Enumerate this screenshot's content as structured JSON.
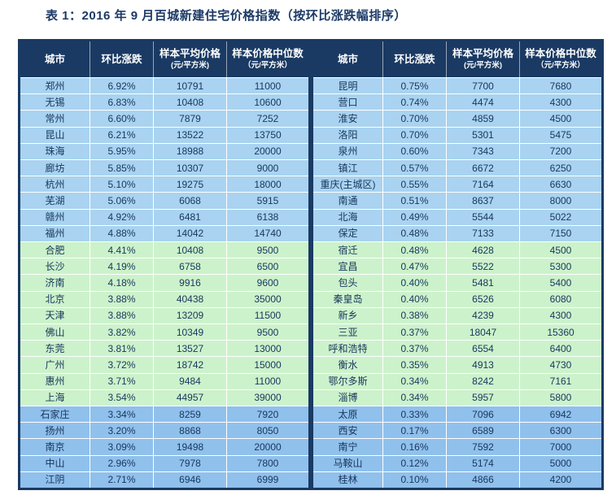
{
  "title": "表 1：2016 年 9 月百城新建住宅价格指数（按环比涨跌幅排序）",
  "header": {
    "city": "城市",
    "change": "环比涨跌",
    "avg": "样本平均价格",
    "avg_unit": "(元/平方米)",
    "median": "样本价格中位数",
    "median_unit": "（元/平方米）"
  },
  "colors": {
    "header_bg": "#1a3a63",
    "border": "#1a3a63",
    "row_blue": "#a9d3f0",
    "row_green": "#ccf2cb",
    "row_mblue": "#90c0ec",
    "cell_text": "#17365d",
    "header_text": "#ffffff",
    "title_text": "#1c3a66",
    "grid_line": "#ffffff"
  },
  "chart_data": {
    "type": "table",
    "title": "表 1：2016 年 9 月百城新建住宅价格指数（按环比涨跌幅排序）",
    "columns": [
      "城市",
      "环比涨跌",
      "样本平均价格(元/平方米)",
      "样本价格中位数（元/平方米）"
    ],
    "row_group_legend": {
      "blue": "light-blue band (rows 1-10)",
      "green": "pale-green band (rows 11-20)",
      "mblue": "medium-blue band (rows 21-25)"
    },
    "left_rows": [
      {
        "city": "郑州",
        "change": "6.92%",
        "avg": "10791",
        "median": "11000",
        "group": "blue"
      },
      {
        "city": "无锡",
        "change": "6.83%",
        "avg": "10408",
        "median": "10600",
        "group": "blue"
      },
      {
        "city": "常州",
        "change": "6.60%",
        "avg": "7879",
        "median": "7252",
        "group": "blue"
      },
      {
        "city": "昆山",
        "change": "6.21%",
        "avg": "13522",
        "median": "13750",
        "group": "blue"
      },
      {
        "city": "珠海",
        "change": "5.95%",
        "avg": "18988",
        "median": "20000",
        "group": "blue"
      },
      {
        "city": "廊坊",
        "change": "5.85%",
        "avg": "10307",
        "median": "9000",
        "group": "blue"
      },
      {
        "city": "杭州",
        "change": "5.10%",
        "avg": "19275",
        "median": "18000",
        "group": "blue"
      },
      {
        "city": "芜湖",
        "change": "5.06%",
        "avg": "6068",
        "median": "5915",
        "group": "blue"
      },
      {
        "city": "赣州",
        "change": "4.92%",
        "avg": "6481",
        "median": "6138",
        "group": "blue"
      },
      {
        "city": "福州",
        "change": "4.88%",
        "avg": "14042",
        "median": "14740",
        "group": "blue"
      },
      {
        "city": "合肥",
        "change": "4.41%",
        "avg": "10408",
        "median": "9500",
        "group": "green"
      },
      {
        "city": "长沙",
        "change": "4.19%",
        "avg": "6758",
        "median": "6500",
        "group": "green"
      },
      {
        "city": "济南",
        "change": "4.18%",
        "avg": "9916",
        "median": "9600",
        "group": "green"
      },
      {
        "city": "北京",
        "change": "3.88%",
        "avg": "40438",
        "median": "35000",
        "group": "green"
      },
      {
        "city": "天津",
        "change": "3.88%",
        "avg": "13209",
        "median": "11500",
        "group": "green"
      },
      {
        "city": "佛山",
        "change": "3.82%",
        "avg": "10349",
        "median": "9500",
        "group": "green"
      },
      {
        "city": "东莞",
        "change": "3.81%",
        "avg": "13527",
        "median": "13000",
        "group": "green"
      },
      {
        "city": "广州",
        "change": "3.72%",
        "avg": "18742",
        "median": "15000",
        "group": "green"
      },
      {
        "city": "惠州",
        "change": "3.71%",
        "avg": "9484",
        "median": "11000",
        "group": "green"
      },
      {
        "city": "上海",
        "change": "3.54%",
        "avg": "44957",
        "median": "39000",
        "group": "green"
      },
      {
        "city": "石家庄",
        "change": "3.34%",
        "avg": "8259",
        "median": "7920",
        "group": "mblue"
      },
      {
        "city": "扬州",
        "change": "3.20%",
        "avg": "8868",
        "median": "8050",
        "group": "mblue"
      },
      {
        "city": "南京",
        "change": "3.09%",
        "avg": "19498",
        "median": "20000",
        "group": "mblue"
      },
      {
        "city": "中山",
        "change": "2.96%",
        "avg": "7978",
        "median": "7800",
        "group": "mblue"
      },
      {
        "city": "江阴",
        "change": "2.71%",
        "avg": "6946",
        "median": "6999",
        "group": "mblue"
      }
    ],
    "right_rows": [
      {
        "city": "昆明",
        "change": "0.75%",
        "avg": "7700",
        "median": "7680",
        "group": "blue"
      },
      {
        "city": "营口",
        "change": "0.74%",
        "avg": "4474",
        "median": "4300",
        "group": "blue"
      },
      {
        "city": "淮安",
        "change": "0.70%",
        "avg": "4859",
        "median": "4500",
        "group": "blue"
      },
      {
        "city": "洛阳",
        "change": "0.70%",
        "avg": "5301",
        "median": "5475",
        "group": "blue"
      },
      {
        "city": "泉州",
        "change": "0.60%",
        "avg": "7343",
        "median": "7200",
        "group": "blue"
      },
      {
        "city": "镇江",
        "change": "0.57%",
        "avg": "6672",
        "median": "6250",
        "group": "blue"
      },
      {
        "city": "重庆(主城区)",
        "change": "0.55%",
        "avg": "7164",
        "median": "6630",
        "group": "blue"
      },
      {
        "city": "南通",
        "change": "0.51%",
        "avg": "8637",
        "median": "8000",
        "group": "blue"
      },
      {
        "city": "北海",
        "change": "0.49%",
        "avg": "5544",
        "median": "5022",
        "group": "blue"
      },
      {
        "city": "保定",
        "change": "0.48%",
        "avg": "7133",
        "median": "7150",
        "group": "blue"
      },
      {
        "city": "宿迁",
        "change": "0.48%",
        "avg": "4628",
        "median": "4500",
        "group": "green"
      },
      {
        "city": "宜昌",
        "change": "0.47%",
        "avg": "5522",
        "median": "5300",
        "group": "green"
      },
      {
        "city": "包头",
        "change": "0.40%",
        "avg": "5481",
        "median": "5400",
        "group": "green"
      },
      {
        "city": "秦皇岛",
        "change": "0.40%",
        "avg": "6526",
        "median": "6080",
        "group": "green"
      },
      {
        "city": "新乡",
        "change": "0.38%",
        "avg": "4239",
        "median": "4300",
        "group": "green"
      },
      {
        "city": "三亚",
        "change": "0.37%",
        "avg": "18047",
        "median": "15360",
        "group": "green"
      },
      {
        "city": "呼和浩特",
        "change": "0.37%",
        "avg": "6554",
        "median": "6400",
        "group": "green"
      },
      {
        "city": "衡水",
        "change": "0.35%",
        "avg": "4913",
        "median": "4730",
        "group": "green"
      },
      {
        "city": "鄂尔多斯",
        "change": "0.34%",
        "avg": "8242",
        "median": "7161",
        "group": "green"
      },
      {
        "city": "淄博",
        "change": "0.34%",
        "avg": "5957",
        "median": "5800",
        "group": "green"
      },
      {
        "city": "太原",
        "change": "0.33%",
        "avg": "7096",
        "median": "6942",
        "group": "mblue"
      },
      {
        "city": "西安",
        "change": "0.17%",
        "avg": "6589",
        "median": "6300",
        "group": "mblue"
      },
      {
        "city": "南宁",
        "change": "0.16%",
        "avg": "7592",
        "median": "7000",
        "group": "mblue"
      },
      {
        "city": "马鞍山",
        "change": "0.12%",
        "avg": "5174",
        "median": "5000",
        "group": "mblue"
      },
      {
        "city": "桂林",
        "change": "0.10%",
        "avg": "4866",
        "median": "4200",
        "group": "mblue"
      }
    ]
  }
}
